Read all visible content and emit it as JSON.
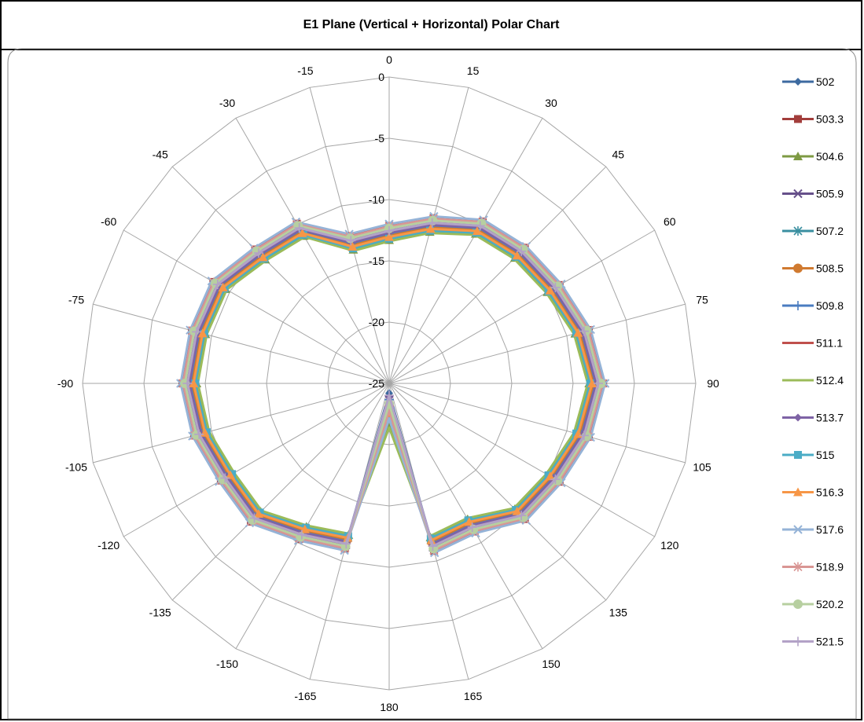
{
  "chart_data": {
    "type": "polar-line",
    "title": "E1 Plane (Vertical + Horizontal) Polar Chart",
    "angles": [
      0,
      15,
      30,
      45,
      60,
      75,
      90,
      105,
      120,
      135,
      150,
      165,
      180,
      -165,
      -150,
      -135,
      -120,
      -105,
      -90,
      -75,
      -60,
      -45,
      -30,
      -15
    ],
    "angle_labels": [
      "0",
      "15",
      "30",
      "45",
      "60",
      "75",
      "90",
      "105",
      "120",
      "135",
      "150",
      "165",
      "180",
      "-165",
      "-150",
      "-135",
      "-120",
      "-105",
      "-90",
      "-75",
      "-60",
      "-45",
      "-30",
      "-15"
    ],
    "radial_range": [
      -25,
      0
    ],
    "radial_ticks": [
      0,
      -5,
      -10,
      -15,
      -20,
      -25
    ],
    "radial_tick_labels": [
      "0",
      "-5",
      "-10",
      "-15",
      "-20",
      "-25"
    ],
    "grid": true,
    "legend": "right",
    "base": [
      -12.6,
      -11.5,
      -10.2,
      -9.8,
      -9.4,
      -8.6,
      -8.0,
      -8.6,
      -9.4,
      -9.8,
      -11.5,
      -11.3,
      -24.0,
      -11.5,
      -10.8,
      -9.5,
      -9.6,
      -9.0,
      -8.6,
      -8.8,
      -8.9,
      -10.0,
      -10.4,
      -13.0
    ],
    "series": [
      {
        "name": "502",
        "offset": 0.0,
        "color": "#3d6aa0",
        "marker": "diamond"
      },
      {
        "name": "503.3",
        "offset": 0.45,
        "color": "#a23d3b",
        "marker": "square"
      },
      {
        "name": "504.6",
        "offset": -0.7,
        "color": "#7e9a43",
        "marker": "triangle"
      },
      {
        "name": "505.9",
        "offset": 0.15,
        "color": "#66508a",
        "marker": "x"
      },
      {
        "name": "507.2",
        "offset": -0.5,
        "color": "#3a8fa0",
        "marker": "star"
      },
      {
        "name": "508.5",
        "offset": -0.3,
        "color": "#d07a30",
        "marker": "circle"
      },
      {
        "name": "509.8",
        "offset": -0.15,
        "color": "#4a7cc0",
        "marker": "plus"
      },
      {
        "name": "511.1",
        "offset": 0.3,
        "color": "#c0504d",
        "marker": "dash"
      },
      {
        "name": "512.4",
        "offset": -0.8,
        "color": "#9bbb59",
        "marker": "none"
      },
      {
        "name": "513.7",
        "offset": -0.1,
        "color": "#7e63a5",
        "marker": "diamond"
      },
      {
        "name": "515",
        "offset": -0.6,
        "color": "#4bacc6",
        "marker": "square"
      },
      {
        "name": "516.3",
        "offset": -0.45,
        "color": "#f79646",
        "marker": "triangle"
      },
      {
        "name": "517.6",
        "offset": 0.6,
        "color": "#95b3d7",
        "marker": "x"
      },
      {
        "name": "518.9",
        "offset": 0.4,
        "color": "#d99694",
        "marker": "star"
      },
      {
        "name": "520.2",
        "offset": 0.25,
        "color": "#b7cfa0",
        "marker": "circle"
      },
      {
        "name": "521.5",
        "offset": 0.05,
        "color": "#b3a2c7",
        "marker": "plus"
      }
    ]
  }
}
